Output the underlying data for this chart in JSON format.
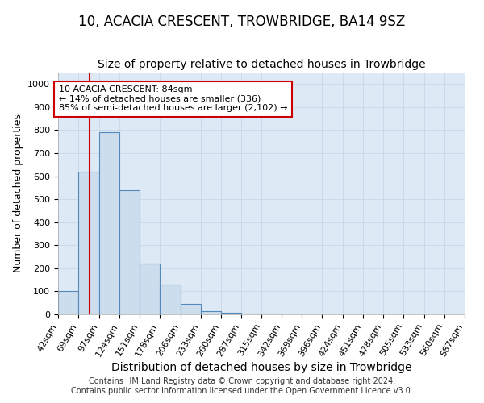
{
  "title": "10, ACACIA CRESCENT, TROWBRIDGE, BA14 9SZ",
  "subtitle": "Size of property relative to detached houses in Trowbridge",
  "xlabel": "Distribution of detached houses by size in Trowbridge",
  "ylabel": "Number of detached properties",
  "bin_edges": [
    42,
    69,
    97,
    124,
    151,
    178,
    206,
    233,
    260,
    287,
    315,
    342,
    369,
    396,
    424,
    451,
    478,
    505,
    533,
    560,
    587
  ],
  "bar_heights": [
    100,
    620,
    790,
    540,
    220,
    130,
    45,
    15,
    7,
    4,
    2,
    1,
    1,
    1,
    1,
    1,
    1,
    1,
    1,
    1
  ],
  "bar_color": "#ccdded",
  "bar_edge_color": "#5588bb",
  "grid_color": "#c8d8e8",
  "background_color": "#ddeaf5",
  "red_line_x": 84,
  "annotation_text": "10 ACACIA CRESCENT: 84sqm\n← 14% of detached houses are smaller (336)\n85% of semi-detached houses are larger (2,102) →",
  "annotation_box_color": "#ffffff",
  "annotation_border_color": "#cc0000",
  "ylim": [
    0,
    1050
  ],
  "title_fontsize": 12,
  "subtitle_fontsize": 10,
  "xlabel_fontsize": 10,
  "ylabel_fontsize": 9,
  "tick_fontsize": 8,
  "annot_fontsize": 8,
  "footer_text": "Contains HM Land Registry data © Crown copyright and database right 2024.\nContains public sector information licensed under the Open Government Licence v3.0."
}
